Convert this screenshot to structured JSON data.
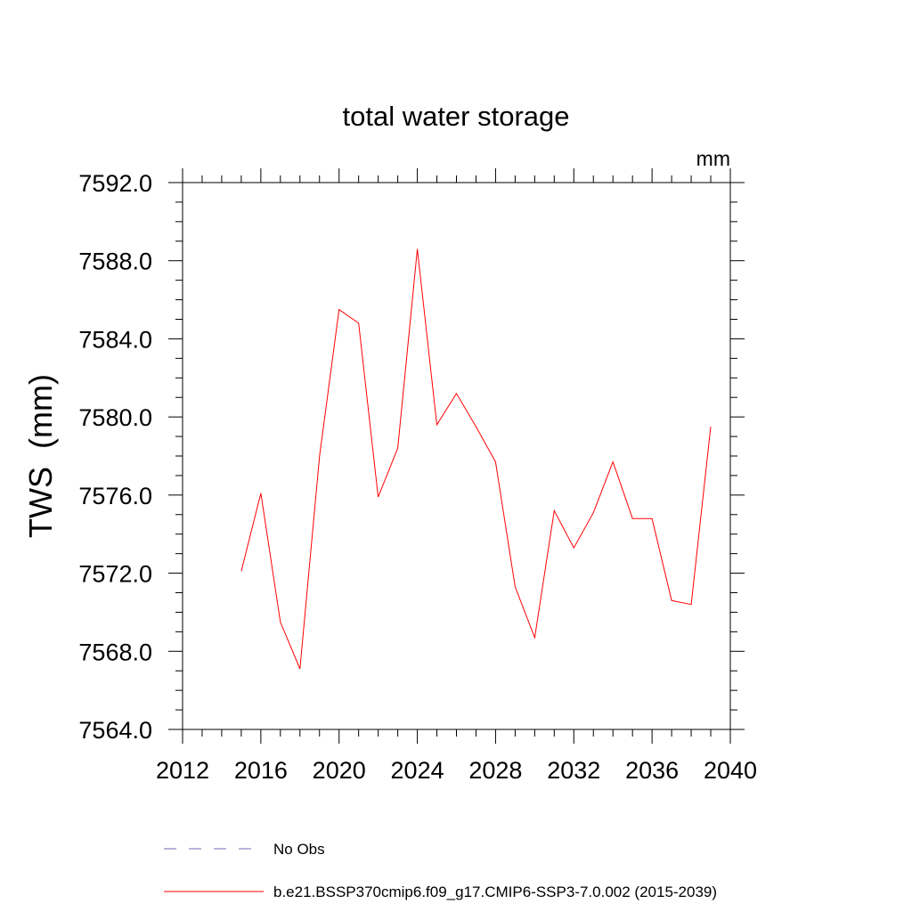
{
  "chart_data": {
    "type": "line",
    "title": "total water storage",
    "units_label": "mm",
    "ylabel": "TWS  (mm)",
    "xlabel": "",
    "xlim": [
      2012,
      2040
    ],
    "ylim": [
      7564.0,
      7592.0
    ],
    "x_ticks": [
      2012,
      2016,
      2020,
      2024,
      2028,
      2032,
      2036,
      2040
    ],
    "x_tick_labels": [
      "2012",
      "2016",
      "2020",
      "2024",
      "2028",
      "2032",
      "2036",
      "2040"
    ],
    "y_ticks": [
      7564.0,
      7568.0,
      7572.0,
      7576.0,
      7580.0,
      7584.0,
      7588.0,
      7592.0
    ],
    "y_tick_labels": [
      "7564.0",
      "7568.0",
      "7572.0",
      "7576.0",
      "7580.0",
      "7584.0",
      "7588.0",
      "7592.0"
    ],
    "grid": false,
    "series": [
      {
        "name": "b.e21.BSSP370cmip6.f09_g17.CMIP6-SSP3-7.0.002 (2015-2039)",
        "color": "#ff0000",
        "style": "solid",
        "x": [
          2015,
          2016,
          2017,
          2018,
          2019,
          2020,
          2021,
          2022,
          2023,
          2024,
          2025,
          2026,
          2027,
          2028,
          2029,
          2030,
          2031,
          2032,
          2033,
          2034,
          2035,
          2036,
          2037,
          2038,
          2039
        ],
        "values": [
          7572.1,
          7576.1,
          7569.5,
          7567.1,
          7578.0,
          7585.5,
          7584.8,
          7575.9,
          7578.4,
          7588.6,
          7579.6,
          7581.2,
          7579.5,
          7577.7,
          7571.3,
          7568.7,
          7575.2,
          7573.3,
          7575.1,
          7577.7,
          7574.8,
          7574.8,
          7570.6,
          7570.4,
          7579.5
        ]
      }
    ],
    "legend": [
      {
        "label": "No Obs",
        "color": "#6e6eb4",
        "style": "dashed"
      },
      {
        "label": "b.e21.BSSP370cmip6.f09_g17.CMIP6-SSP3-7.0.002 (2015-2039)",
        "color": "#ff0000",
        "style": "solid"
      }
    ],
    "legend_position": "bottom"
  }
}
